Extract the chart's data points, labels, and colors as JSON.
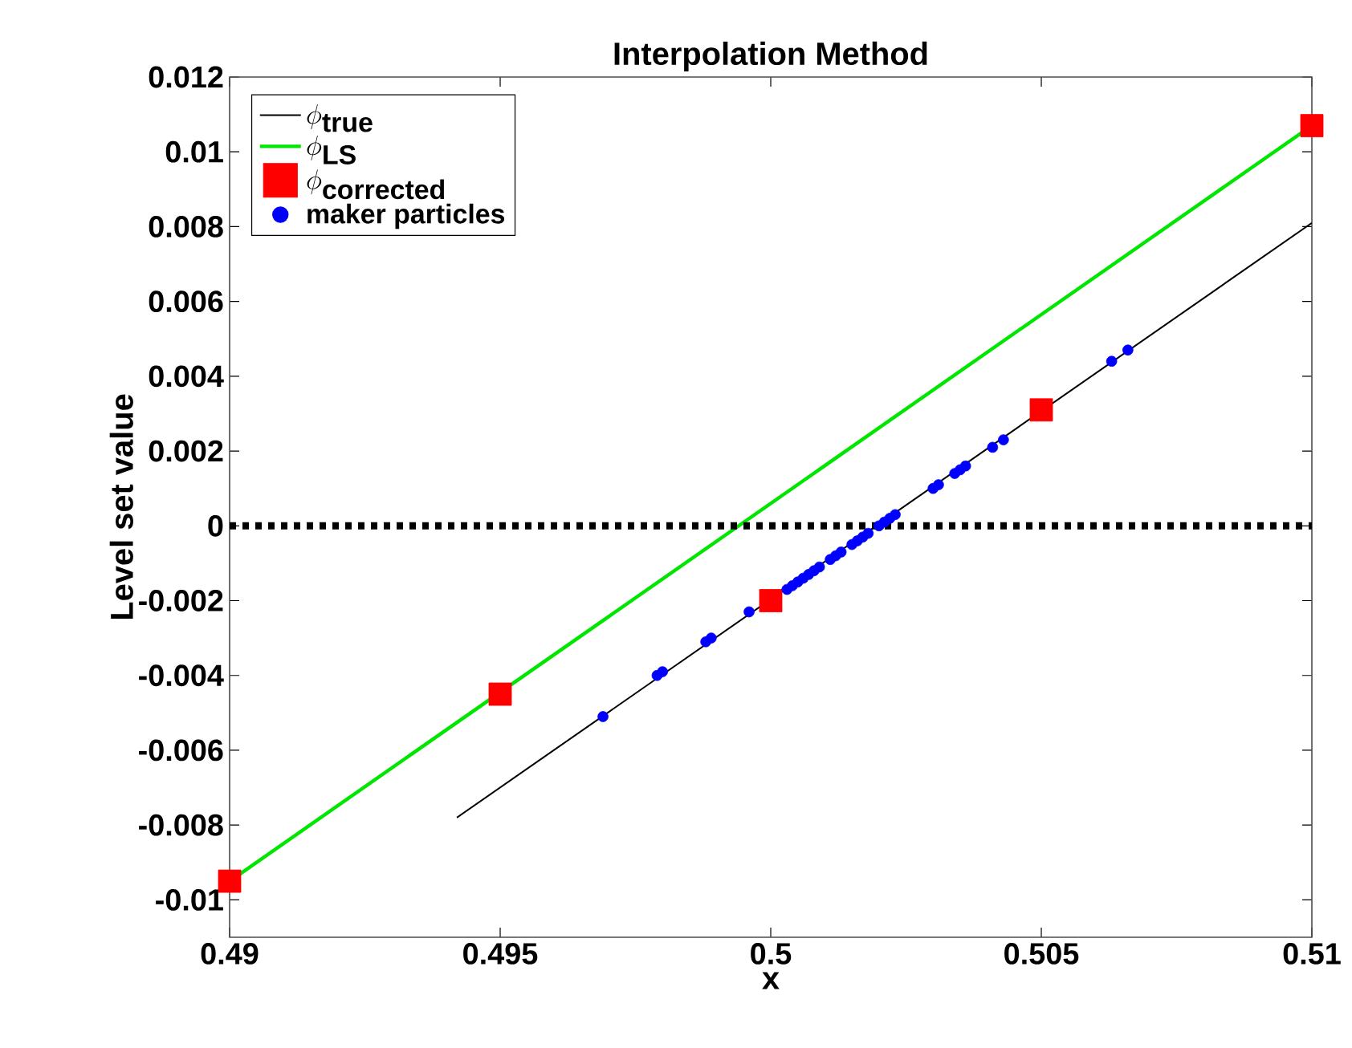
{
  "chart_data": {
    "type": "line",
    "title": "Interpolation Method",
    "xlabel": "x",
    "ylabel": "Level set value",
    "xlim": [
      0.49,
      0.51
    ],
    "xticks": [
      0.49,
      0.495,
      0.5,
      0.505,
      0.51
    ],
    "ylim": [
      -0.011,
      0.012
    ],
    "yticks": [
      -0.01,
      -0.008,
      -0.006,
      -0.004,
      -0.002,
      0,
      0.002,
      0.004,
      0.006,
      0.008,
      0.01,
      0.012
    ],
    "legend": "top left",
    "grid": false,
    "ref_lines": [
      {
        "axis": "y",
        "value": 0,
        "color": "#000000",
        "line_style": "dotted"
      }
    ],
    "series": [
      {
        "name": "\\phi_{\\textbf{true}}",
        "color": "#000000",
        "marker": "none",
        "x": [
          0.4942,
          0.51
        ],
        "values": [
          -0.0078,
          0.0081
        ]
      },
      {
        "name": "\\phi_{\\textbf{LS}}",
        "color": "#00e600",
        "marker": "none",
        "x": [
          0.49,
          0.51
        ],
        "values": [
          -0.0095,
          0.0107
        ]
      },
      {
        "name": "\\phi_{\\textbf{corrected}}",
        "type": "scatter",
        "color": "#ff0000",
        "marker": "square",
        "x": [
          0.49,
          0.495,
          0.5,
          0.505,
          0.51
        ],
        "values": [
          -0.0095,
          -0.0045,
          -0.002,
          0.0031,
          0.0107
        ]
      },
      {
        "name": "maker particles",
        "type": "scatter",
        "color": "#0000ff",
        "marker": "circle",
        "x": [
          0.4969,
          0.4979,
          0.498,
          0.4988,
          0.4989,
          0.4996,
          0.5003,
          0.5004,
          0.5005,
          0.5006,
          0.5007,
          0.5008,
          0.5009,
          0.5011,
          0.5012,
          0.5013,
          0.5015,
          0.5016,
          0.5017,
          0.5018,
          0.502,
          0.5021,
          0.5022,
          0.5023,
          0.503,
          0.5031,
          0.5034,
          0.5035,
          0.5036,
          0.5041,
          0.5043,
          0.5063,
          0.5066
        ],
        "values": [
          -0.0051,
          -0.004,
          -0.0039,
          -0.0031,
          -0.003,
          -0.0023,
          -0.0017,
          -0.0016,
          -0.0015,
          -0.0014,
          -0.0013,
          -0.0012,
          -0.0011,
          -0.0009,
          -0.0008,
          -0.0007,
          -0.0005,
          -0.0004,
          -0.0003,
          -0.0002,
          0,
          0.0001,
          0.0002,
          0.0003,
          0.001,
          0.0011,
          0.0014,
          0.0015,
          0.0016,
          0.0021,
          0.0023,
          0.0044,
          0.0047
        ]
      }
    ]
  }
}
